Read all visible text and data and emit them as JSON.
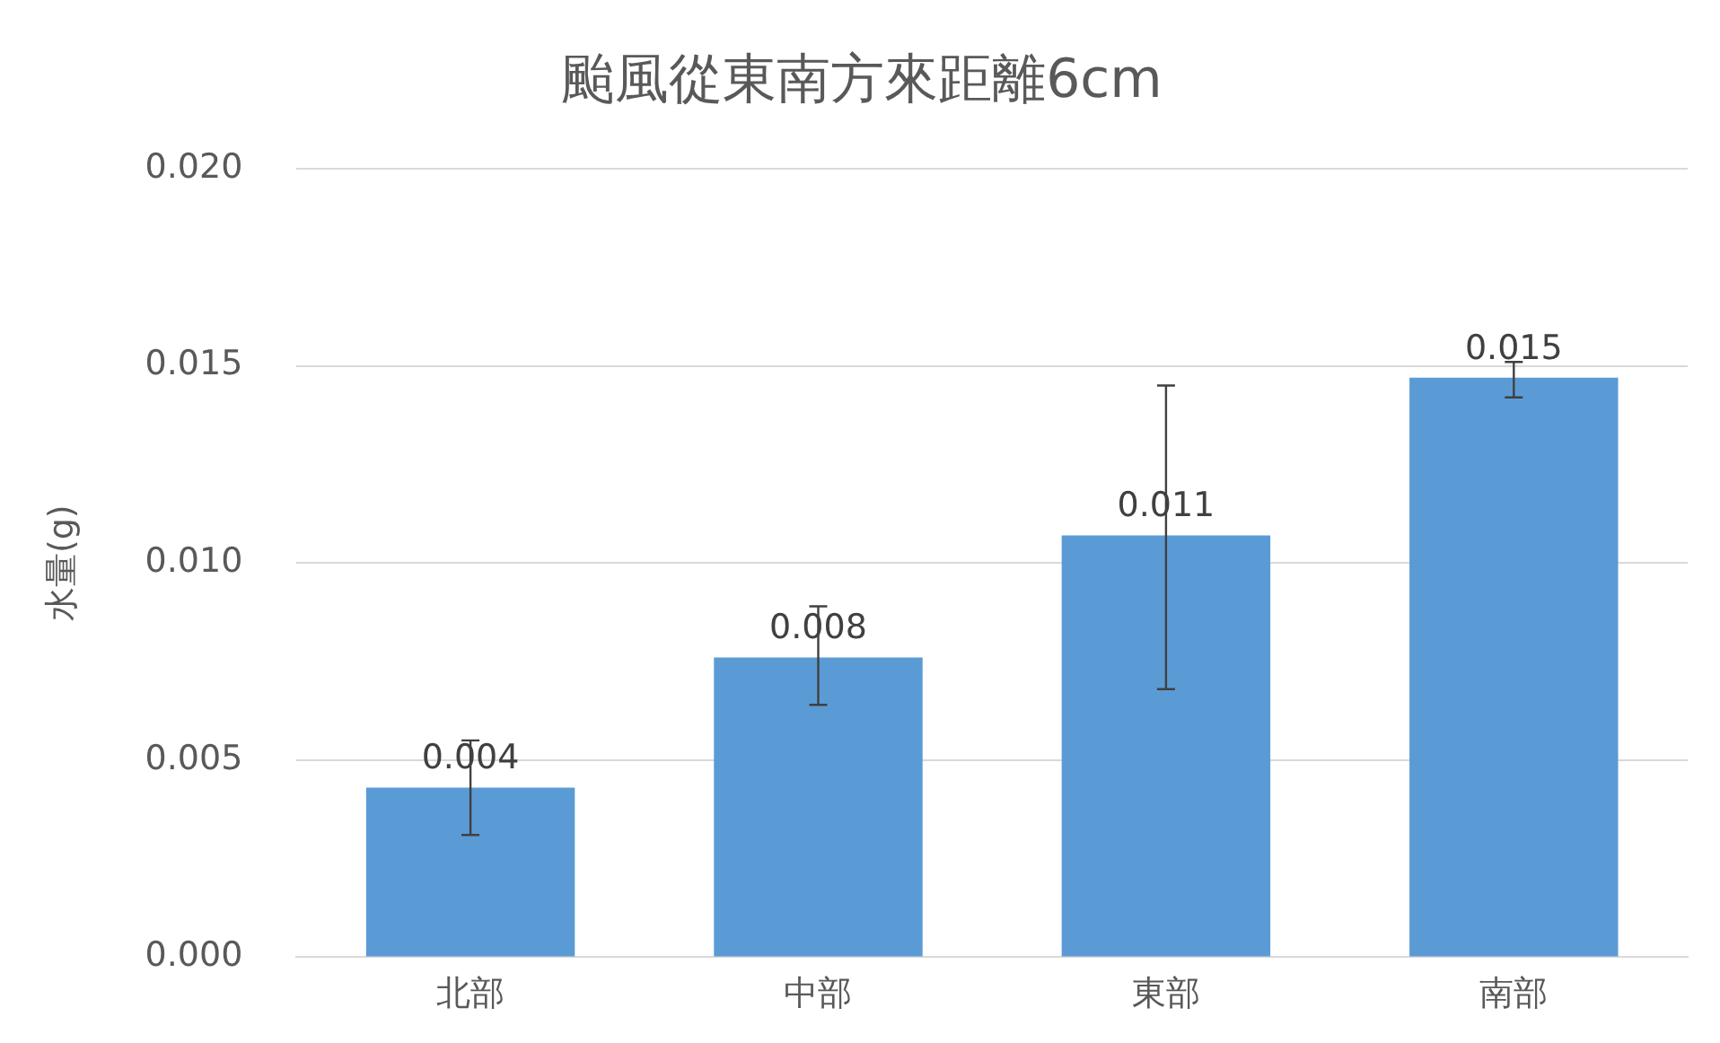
{
  "chart_data": {
    "type": "bar",
    "title": "颱風從東南方來距離6cm",
    "ylabel": "水量(g)",
    "categories": [
      "北部",
      "中部",
      "東部",
      "南部"
    ],
    "values": [
      0.0043,
      0.0076,
      0.0107,
      0.0147
    ],
    "errors": [
      [
        0.0031,
        0.0055
      ],
      [
        0.0064,
        0.0089
      ],
      [
        0.0068,
        0.0145
      ],
      [
        0.0142,
        0.0151
      ]
    ],
    "value_labels": [
      "0.004",
      "0.008",
      "0.011",
      "0.015"
    ],
    "color": "#5b9bd5",
    "ylim": [
      0,
      0.02
    ],
    "yticks": [
      {
        "value": 0,
        "label": "0.000"
      },
      {
        "value": 0.005,
        "label": "0.005"
      },
      {
        "value": 0.01,
        "label": "0.010"
      },
      {
        "value": 0.015,
        "label": "0.015"
      },
      {
        "value": 0.02,
        "label": "0.020"
      }
    ],
    "grid": "y",
    "legend": false
  }
}
